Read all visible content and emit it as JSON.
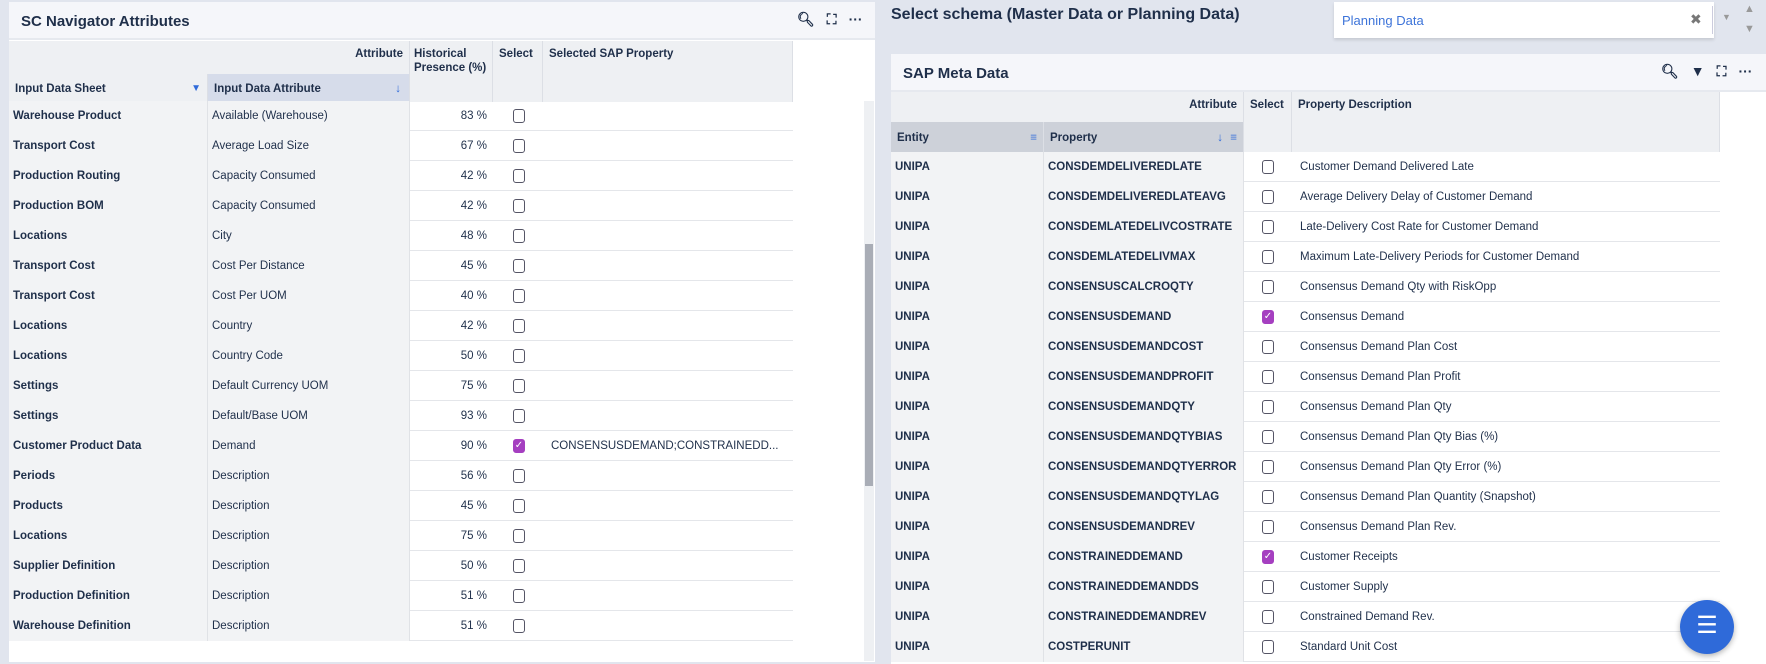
{
  "left": {
    "title": "SC Navigator Attributes",
    "group_header": "Attribute",
    "columns": [
      "Input Data Sheet",
      "Input Data Attribute",
      "Historical Presence (%)",
      "Select",
      "Selected SAP Property"
    ],
    "rows": [
      {
        "sheet": "Warehouse Product",
        "attr": "Available (Warehouse)",
        "pct": "83 %",
        "sel": false,
        "prop": ""
      },
      {
        "sheet": "Transport Cost",
        "attr": "Average Load Size",
        "pct": "67 %",
        "sel": false,
        "prop": ""
      },
      {
        "sheet": "Production Routing",
        "attr": "Capacity Consumed",
        "pct": "42 %",
        "sel": false,
        "prop": ""
      },
      {
        "sheet": "Production BOM",
        "attr": "Capacity Consumed",
        "pct": "42 %",
        "sel": false,
        "prop": ""
      },
      {
        "sheet": "Locations",
        "attr": "City",
        "pct": "48 %",
        "sel": false,
        "prop": ""
      },
      {
        "sheet": "Transport Cost",
        "attr": "Cost Per Distance",
        "pct": "45 %",
        "sel": false,
        "prop": ""
      },
      {
        "sheet": "Transport Cost",
        "attr": "Cost Per UOM",
        "pct": "40 %",
        "sel": false,
        "prop": ""
      },
      {
        "sheet": "Locations",
        "attr": "Country",
        "pct": "42 %",
        "sel": false,
        "prop": ""
      },
      {
        "sheet": "Locations",
        "attr": "Country Code",
        "pct": "50 %",
        "sel": false,
        "prop": ""
      },
      {
        "sheet": "Settings",
        "attr": "Default Currency UOM",
        "pct": "75 %",
        "sel": false,
        "prop": ""
      },
      {
        "sheet": "Settings",
        "attr": "Default/Base UOM",
        "pct": "93 %",
        "sel": false,
        "prop": ""
      },
      {
        "sheet": "Customer Product Data",
        "attr": "Demand",
        "pct": "90 %",
        "sel": true,
        "prop": "CONSENSUSDEMAND;CONSTRAINEDD..."
      },
      {
        "sheet": "Periods",
        "attr": "Description",
        "pct": "56 %",
        "sel": false,
        "prop": ""
      },
      {
        "sheet": "Products",
        "attr": "Description",
        "pct": "45 %",
        "sel": false,
        "prop": ""
      },
      {
        "sheet": "Locations",
        "attr": "Description",
        "pct": "75 %",
        "sel": false,
        "prop": ""
      },
      {
        "sheet": "Supplier Definition",
        "attr": "Description",
        "pct": "50 %",
        "sel": false,
        "prop": ""
      },
      {
        "sheet": "Production Definition",
        "attr": "Description",
        "pct": "51 %",
        "sel": false,
        "prop": ""
      },
      {
        "sheet": "Warehouse Definition",
        "attr": "Description",
        "pct": "51 %",
        "sel": false,
        "prop": ""
      }
    ]
  },
  "schema": {
    "label": "Select schema (Master Data or Planning Data)",
    "value": "Planning Data"
  },
  "right": {
    "title": "SAP Meta Data",
    "group_header": "Attribute",
    "columns": [
      "Entity",
      "Property",
      "Select",
      "Property Description"
    ],
    "rows": [
      {
        "entity": "UNIPA",
        "prop": "CONSDEMDELIVEREDLATE",
        "sel": false,
        "desc": "Customer Demand Delivered Late"
      },
      {
        "entity": "UNIPA",
        "prop": "CONSDEMDELIVEREDLATEAVG",
        "sel": false,
        "desc": "Average Delivery Delay of Customer Demand"
      },
      {
        "entity": "UNIPA",
        "prop": "CONSDEMLATEDELIVCOSTRATE",
        "sel": false,
        "desc": "Late-Delivery Cost Rate for Customer Demand"
      },
      {
        "entity": "UNIPA",
        "prop": "CONSDEMLATEDELIVMAX",
        "sel": false,
        "desc": "Maximum Late-Delivery Periods for Customer Demand"
      },
      {
        "entity": "UNIPA",
        "prop": "CONSENSUSCALCROQTY",
        "sel": false,
        "desc": "Consensus Demand Qty with RiskOpp"
      },
      {
        "entity": "UNIPA",
        "prop": "CONSENSUSDEMAND",
        "sel": true,
        "desc": "Consensus Demand"
      },
      {
        "entity": "UNIPA",
        "prop": "CONSENSUSDEMANDCOST",
        "sel": false,
        "desc": "Consensus Demand Plan Cost"
      },
      {
        "entity": "UNIPA",
        "prop": "CONSENSUSDEMANDPROFIT",
        "sel": false,
        "desc": "Consensus Demand Plan Profit"
      },
      {
        "entity": "UNIPA",
        "prop": "CONSENSUSDEMANDQTY",
        "sel": false,
        "desc": "Consensus Demand Plan Qty"
      },
      {
        "entity": "UNIPA",
        "prop": "CONSENSUSDEMANDQTYBIAS",
        "sel": false,
        "desc": "Consensus Demand Plan Qty Bias (%)"
      },
      {
        "entity": "UNIPA",
        "prop": "CONSENSUSDEMANDQTYERROR",
        "sel": false,
        "desc": "Consensus Demand Plan Qty Error (%)"
      },
      {
        "entity": "UNIPA",
        "prop": "CONSENSUSDEMANDQTYLAG",
        "sel": false,
        "desc": "Consensus Demand Plan Quantity (Snapshot)"
      },
      {
        "entity": "UNIPA",
        "prop": "CONSENSUSDEMANDREV",
        "sel": false,
        "desc": "Consensus Demand Plan Rev."
      },
      {
        "entity": "UNIPA",
        "prop": "CONSTRAINEDDEMAND",
        "sel": true,
        "desc": "Customer Receipts"
      },
      {
        "entity": "UNIPA",
        "prop": "CONSTRAINEDDEMANDDS",
        "sel": false,
        "desc": "Customer Supply"
      },
      {
        "entity": "UNIPA",
        "prop": "CONSTRAINEDDEMANDREV",
        "sel": false,
        "desc": "Constrained Demand Rev."
      },
      {
        "entity": "UNIPA",
        "prop": "COSTPERUNIT",
        "sel": false,
        "desc": "Standard Unit Cost"
      }
    ]
  },
  "colors": {
    "accent": "#2f6ad9",
    "checked": "#a53fc0",
    "text": "#1f2f4a"
  },
  "icons": [
    "search-icon",
    "filter-icon",
    "fullscreen-icon",
    "more-icon",
    "menu-icon",
    "clear-icon",
    "chevron-down-icon"
  ]
}
